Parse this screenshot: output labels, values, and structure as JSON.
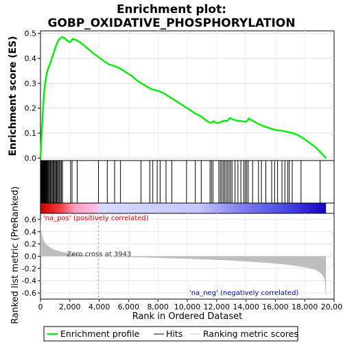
{
  "chart_data": {
    "type": "line",
    "title_line1": "Enrichment plot:",
    "title_line2": "GOBP_OXIDATIVE_PHOSPHORYLATION",
    "xlabel": "Rank in Ordered Dataset",
    "ylabel_top": "Enrichment score (ES)",
    "ylabel_bottom": "Ranked list metric (PreRanked)",
    "xlim": [
      0,
      20000
    ],
    "x_ticks": [
      0,
      2000,
      4000,
      6000,
      8000,
      10000,
      12000,
      14000,
      16000,
      18000,
      20000
    ],
    "x_tick_labels": [
      "0",
      "2,000",
      "4,000",
      "6,000",
      "8,000",
      "10,000",
      "12,000",
      "14,000",
      "16,000",
      "18,000",
      "20,000"
    ],
    "es_ylim": [
      -0.01,
      0.51
    ],
    "es_ticks": [
      0.0,
      0.1,
      0.2,
      0.3,
      0.4,
      0.5
    ],
    "es_tick_labels": [
      "0.0",
      "0.1",
      "0.2",
      "0.3",
      "0.4",
      "0.5"
    ],
    "metric_ylim": [
      -0.7,
      0.7
    ],
    "metric_ticks": [
      0.6,
      0.4,
      0.2,
      0.0,
      -0.2,
      -0.4,
      -0.6
    ],
    "metric_tick_labels": [
      "0.6",
      "0.4",
      "0.2",
      "0.0",
      "-0.2",
      "-0.4",
      "-0.6"
    ],
    "n_genes": 19450,
    "zero_cross": 3943,
    "zero_cross_label": "Zero cross at 3943",
    "na_pos_label": "'na_pos' (positively correlated)",
    "na_neg_label": "'na_neg' (negatively correlated)",
    "es_curve": {
      "x": [
        0,
        50,
        100,
        150,
        200,
        250,
        300,
        350,
        400,
        450,
        500,
        600,
        700,
        800,
        900,
        1000,
        1100,
        1200,
        1300,
        1400,
        1500,
        1600,
        1700,
        1800,
        1900,
        2000,
        2100,
        2200,
        2300,
        2500,
        2800,
        3200,
        3600,
        3943,
        4300,
        4700,
        5000,
        5400,
        5800,
        6200,
        6600,
        7000,
        7300,
        7600,
        8000,
        8400,
        8800,
        9200,
        9600,
        10000,
        10500,
        11000,
        11300,
        11600,
        11800,
        12000,
        12200,
        12500,
        12700,
        12900,
        13100,
        13400,
        13700,
        14000,
        14200,
        14500,
        14800,
        15200,
        15600,
        16000,
        16400,
        16800,
        17200,
        17600,
        18000,
        18400,
        18800,
        19100,
        19450
      ],
      "y": [
        0.0,
        0.06,
        0.12,
        0.17,
        0.22,
        0.26,
        0.29,
        0.31,
        0.33,
        0.345,
        0.355,
        0.37,
        0.385,
        0.405,
        0.42,
        0.44,
        0.455,
        0.47,
        0.478,
        0.483,
        0.485,
        0.482,
        0.478,
        0.472,
        0.468,
        0.465,
        0.47,
        0.478,
        0.476,
        0.472,
        0.46,
        0.44,
        0.42,
        0.405,
        0.39,
        0.375,
        0.37,
        0.36,
        0.345,
        0.33,
        0.31,
        0.295,
        0.285,
        0.275,
        0.27,
        0.26,
        0.245,
        0.23,
        0.215,
        0.2,
        0.18,
        0.165,
        0.15,
        0.14,
        0.148,
        0.14,
        0.142,
        0.15,
        0.148,
        0.16,
        0.155,
        0.15,
        0.148,
        0.145,
        0.158,
        0.148,
        0.138,
        0.128,
        0.12,
        0.113,
        0.11,
        0.105,
        0.1,
        0.09,
        0.075,
        0.058,
        0.04,
        0.022,
        0.0
      ]
    },
    "hits": [
      20,
      45,
      70,
      95,
      120,
      150,
      180,
      210,
      240,
      270,
      300,
      330,
      360,
      400,
      440,
      480,
      520,
      570,
      620,
      680,
      740,
      800,
      860,
      920,
      980,
      1040,
      1100,
      1160,
      1220,
      1290,
      1360,
      1430,
      1500,
      2050,
      2150,
      2500,
      3950,
      4550,
      5050,
      5450,
      6850,
      7450,
      7650,
      7950,
      8150,
      8550,
      8950,
      9950,
      10550,
      10950,
      11550,
      11650,
      11750,
      12150,
      12250,
      12350,
      12450,
      12550,
      12650,
      12750,
      12850,
      12950,
      13050,
      13250,
      13450,
      13650,
      13850,
      13950,
      14050,
      14150,
      14450,
      14850,
      15050,
      15350,
      15750,
      15950,
      16150,
      16450,
      16650,
      16850,
      16950,
      17150,
      17750,
      19050
    ],
    "metric_curve": {
      "x": [
        0,
        30,
        80,
        150,
        250,
        400,
        600,
        900,
        1300,
        1800,
        2500,
        3200,
        3943,
        5000,
        7000,
        9000,
        11000,
        12500,
        14000,
        15500,
        16500,
        17500,
        18200,
        18700,
        19000,
        19200,
        19350,
        19450
      ],
      "y": [
        0.62,
        0.45,
        0.37,
        0.3,
        0.24,
        0.19,
        0.15,
        0.11,
        0.08,
        0.055,
        0.03,
        0.012,
        0.0,
        -0.01,
        -0.02,
        -0.035,
        -0.05,
        -0.065,
        -0.085,
        -0.11,
        -0.13,
        -0.16,
        -0.19,
        -0.22,
        -0.26,
        -0.3,
        -0.38,
        -0.68
      ]
    },
    "series": [
      {
        "name": "Enrichment profile",
        "color": "#00ee00"
      },
      {
        "name": "Hits",
        "color": "#000000"
      },
      {
        "name": "Ranking metric scores",
        "color": "#c0c0c0"
      }
    ],
    "colors": {
      "es_line": "#00ee00",
      "hits": "#000000",
      "metric_fill": "#bebebe",
      "na_pos_text": "#dd0000",
      "na_neg_text": "#0000cc",
      "zero_line": "#aaaaaa"
    }
  }
}
